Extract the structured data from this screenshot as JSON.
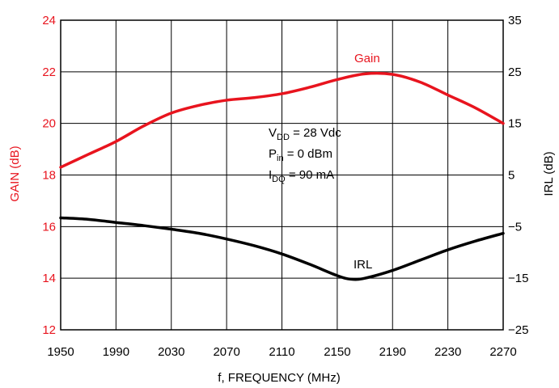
{
  "chart_data": {
    "type": "line",
    "xlabel": "f, FREQUENCY (MHz)",
    "x_ticks": [
      "1950",
      "1990",
      "2030",
      "2070",
      "2110",
      "2150",
      "2190",
      "2230",
      "2270"
    ],
    "xlim": [
      1950,
      2270
    ],
    "left_axis": {
      "label": "GAIN (dB)",
      "color": "#e8141e",
      "ylim": [
        12,
        24
      ],
      "ticks": [
        "12",
        "14",
        "16",
        "18",
        "20",
        "22",
        "24"
      ]
    },
    "right_axis": {
      "label": "IRL (dB)",
      "color": "#000000",
      "ylim": [
        -25,
        35
      ],
      "ticks": [
        "−25",
        "−15",
        "−5",
        "5",
        "15",
        "25",
        "35"
      ]
    },
    "grid": true,
    "series": [
      {
        "name": "Gain",
        "axis": "left",
        "color": "#e8141e",
        "x": [
          1950,
          1970,
          1990,
          2010,
          2030,
          2050,
          2070,
          2090,
          2110,
          2130,
          2150,
          2170,
          2190,
          2210,
          2230,
          2250,
          2270
        ],
        "y": [
          18.3,
          18.8,
          19.3,
          19.9,
          20.4,
          20.7,
          20.9,
          21.0,
          21.15,
          21.4,
          21.7,
          21.92,
          21.9,
          21.6,
          21.1,
          20.6,
          20.0
        ]
      },
      {
        "name": "IRL",
        "axis": "right",
        "color": "#000000",
        "x": [
          1950,
          1970,
          1990,
          2010,
          2030,
          2050,
          2070,
          2090,
          2110,
          2130,
          2150,
          2160,
          2170,
          2190,
          2210,
          2230,
          2250,
          2270
        ],
        "y": [
          -3.3,
          -3.6,
          -4.2,
          -4.8,
          -5.5,
          -6.3,
          -7.4,
          -8.7,
          -10.3,
          -12.3,
          -14.5,
          -15.2,
          -15.0,
          -13.5,
          -11.5,
          -9.5,
          -7.8,
          -6.3
        ]
      }
    ],
    "annotations": {
      "vdd": {
        "main": "V",
        "sub": "DD",
        "rest": " = 28 Vdc"
      },
      "pin": {
        "main": "P",
        "sub": "in",
        "rest": " = 0 dBm"
      },
      "idq": {
        "main": "I",
        "sub": "DQ",
        "rest": " = 90 mA"
      },
      "gain_label": "Gain",
      "irl_label": "IRL"
    }
  }
}
